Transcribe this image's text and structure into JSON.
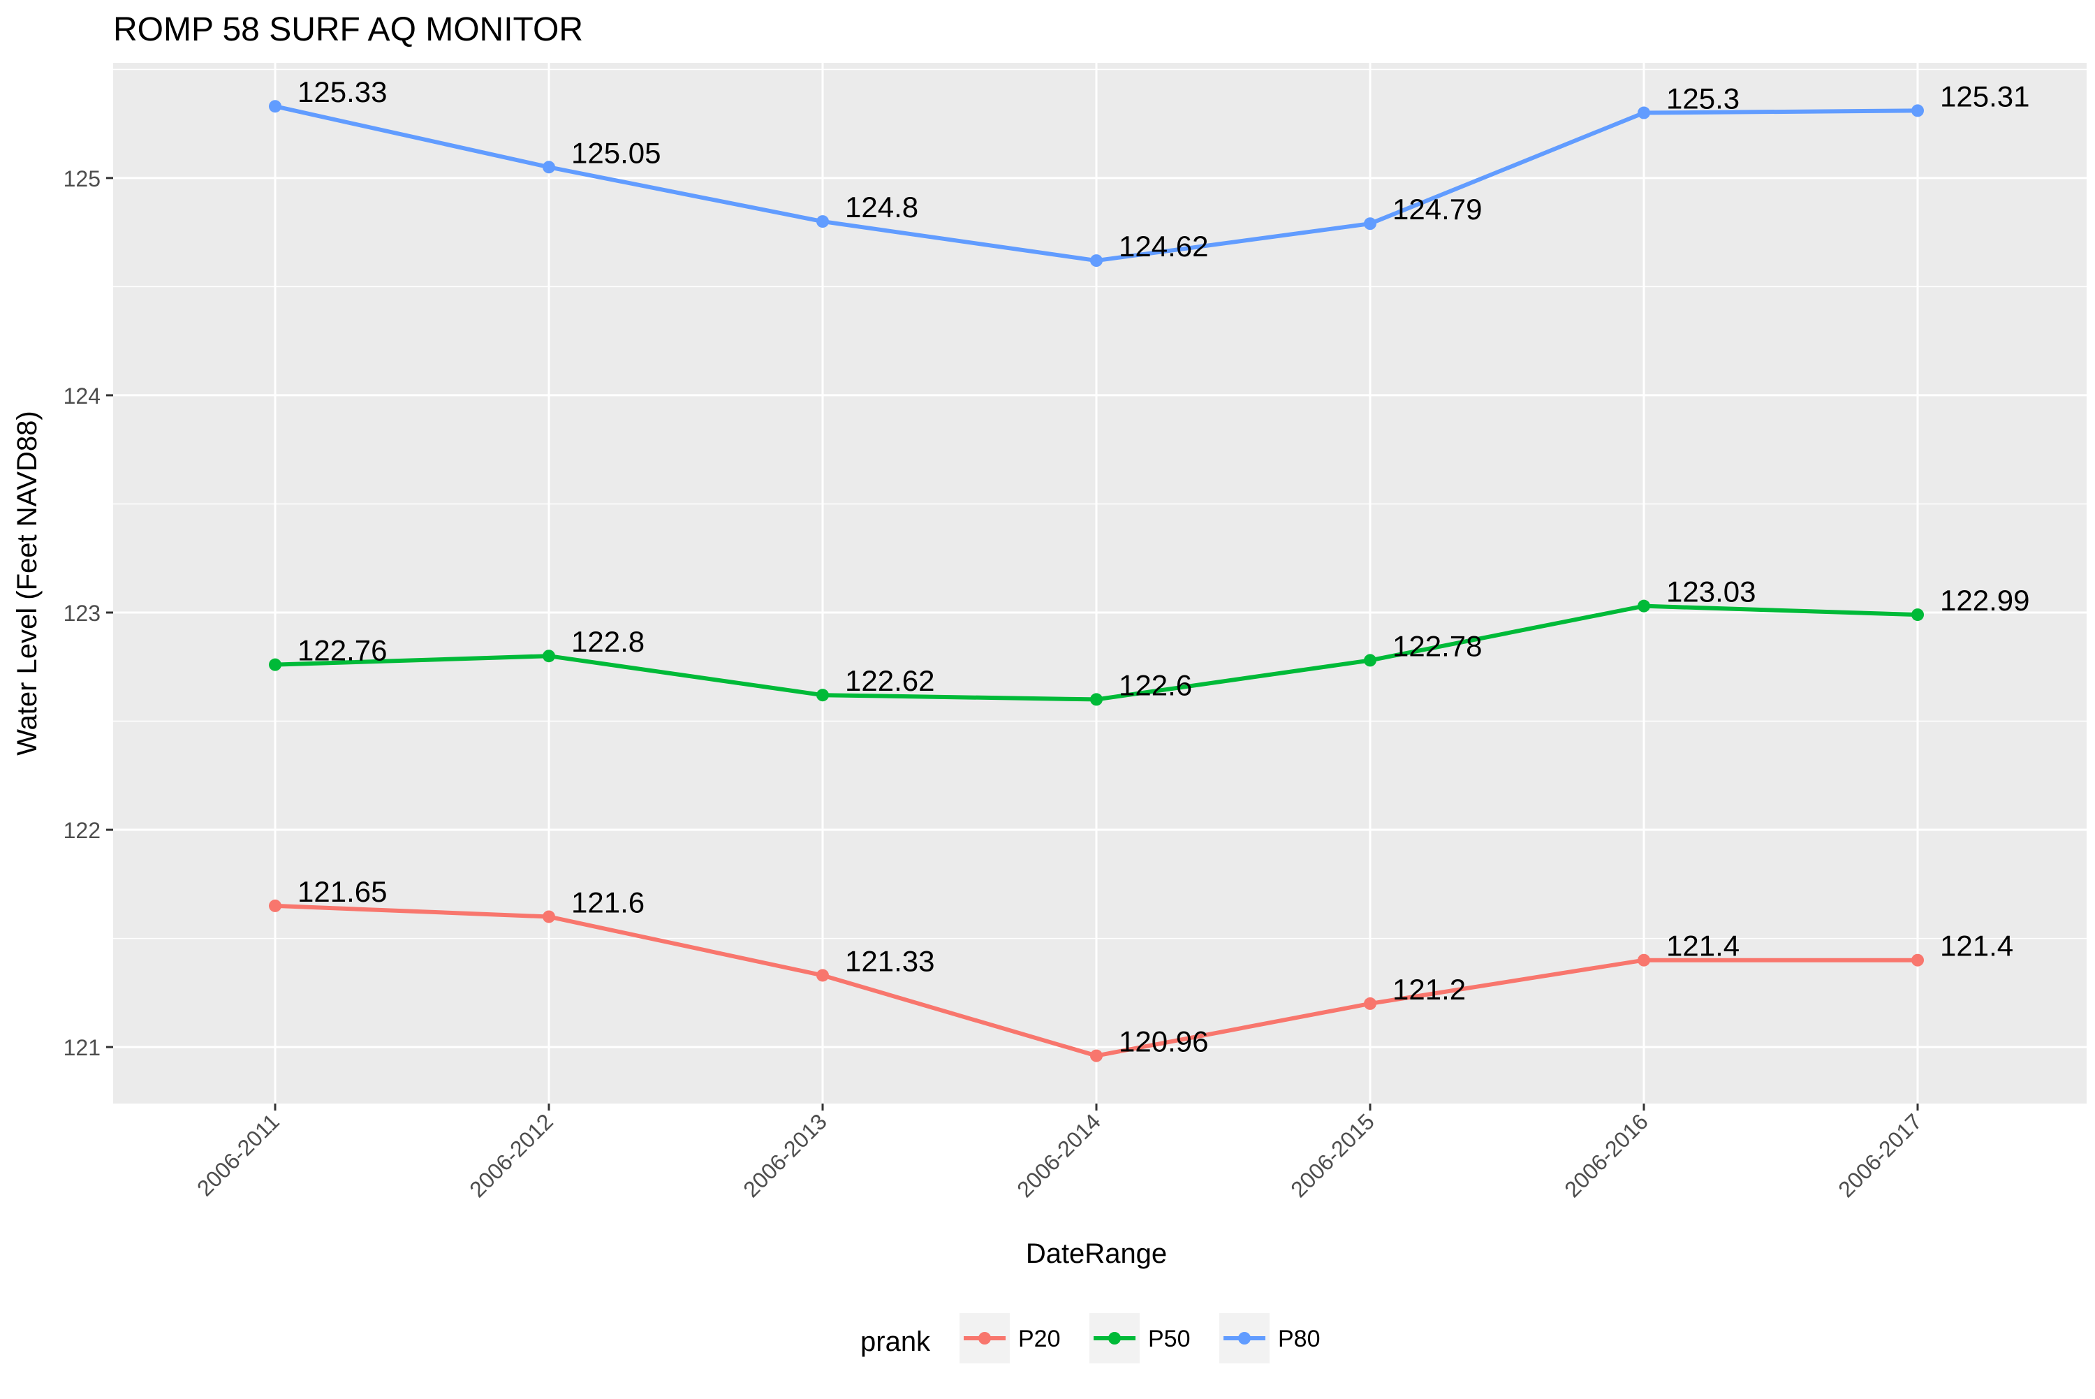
{
  "chart_data": {
    "type": "line",
    "title": "ROMP 58 SURF AQ MONITOR",
    "xlabel": "DateRange",
    "ylabel": "Water Level (Feet NAVD88)",
    "categories": [
      "2006-2011",
      "2006-2012",
      "2006-2013",
      "2006-2014",
      "2006-2015",
      "2006-2016",
      "2006-2017"
    ],
    "yticks": [
      121,
      122,
      123,
      124,
      125
    ],
    "ylim": [
      120.74,
      125.53
    ],
    "grid": true,
    "legend": {
      "title": "prank",
      "position": "bottom"
    },
    "series": [
      {
        "name": "P20",
        "color": "#F8766D",
        "values": [
          121.65,
          121.6,
          121.33,
          120.96,
          121.2,
          121.4,
          121.4
        ],
        "labels": [
          "121.65",
          "121.6",
          "121.33",
          "120.96",
          "121.2",
          "121.4",
          "121.4"
        ]
      },
      {
        "name": "P50",
        "color": "#00BA38",
        "values": [
          122.76,
          122.8,
          122.62,
          122.6,
          122.78,
          123.03,
          122.99
        ],
        "labels": [
          "122.76",
          "122.8",
          "122.62",
          "122.6",
          "122.78",
          "123.03",
          "122.99"
        ]
      },
      {
        "name": "P80",
        "color": "#619CFF",
        "values": [
          125.33,
          125.05,
          124.8,
          124.62,
          124.79,
          125.3,
          125.31
        ],
        "labels": [
          "125.33",
          "125.05",
          "124.8",
          "124.62",
          "124.79",
          "125.3",
          "125.31"
        ]
      }
    ]
  }
}
